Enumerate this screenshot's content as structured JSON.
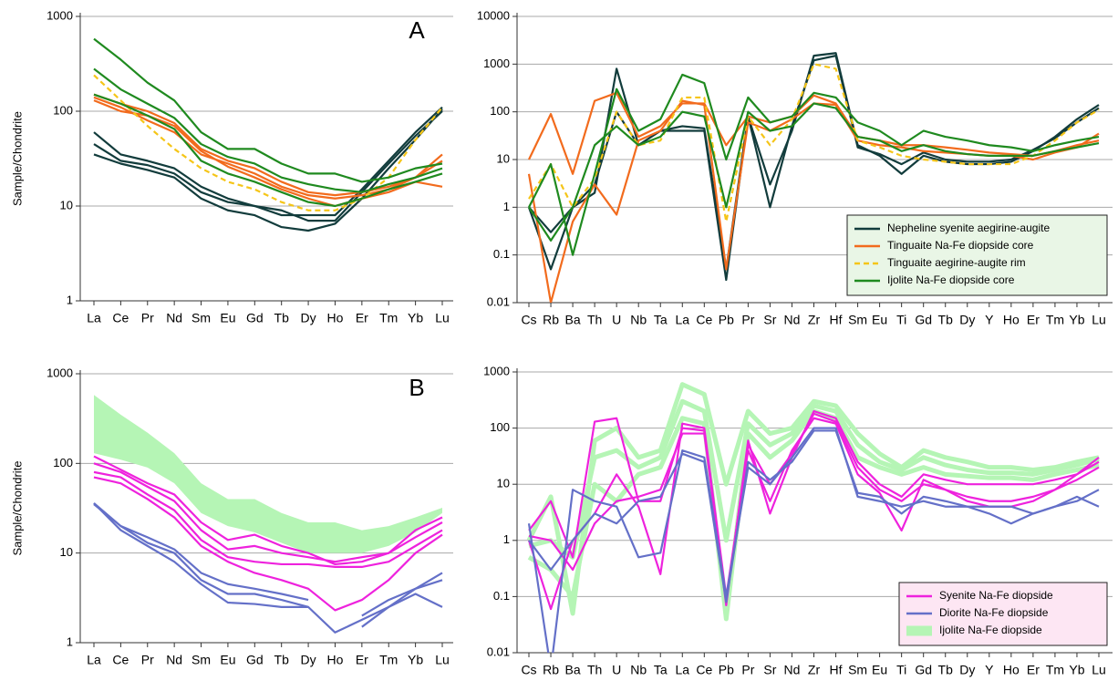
{
  "chart_data": [
    {
      "type": "line",
      "annotation": "A",
      "ylabel": "Sample/Chondrite",
      "log": true,
      "grid": true,
      "categories": [
        "La",
        "Ce",
        "Pr",
        "Nd",
        "Sm",
        "Eu",
        "Gd",
        "Tb",
        "Dy",
        "Ho",
        "Er",
        "Tm",
        "Yb",
        "Lu"
      ],
      "ylim": [
        1,
        1000
      ],
      "yticks": [
        1,
        10,
        100,
        1000
      ],
      "series": [
        {
          "color": "#123c3c",
          "lines": [
            [
              45,
              30,
              27,
              22,
              14,
              11,
              10,
              8,
              8,
              8,
              15,
              30,
              60,
              110
            ],
            [
              60,
              35,
              30,
              25,
              16,
              12,
              10,
              9,
              7,
              7,
              14,
              28,
              55,
              100
            ],
            [
              35,
              28,
              24,
              20,
              12,
              9,
              8,
              6,
              5.5,
              6.5,
              12,
              25,
              50,
              105
            ]
          ]
        },
        {
          "color": "#f26b1d",
          "lines": [
            [
              150,
              120,
              100,
              75,
              40,
              30,
              25,
              18,
              14,
              13,
              14,
              16,
              20,
              35
            ],
            [
              140,
              110,
              80,
              60,
              35,
              28,
              22,
              16,
              13,
              12,
              13,
              15,
              20,
              30
            ],
            [
              130,
              100,
              90,
              70,
              38,
              26,
              20,
              15,
              12,
              10,
              12,
              14,
              18,
              16
            ]
          ]
        },
        {
          "color": "#f5c518",
          "dash": true,
          "lines": [
            [
              240,
              130,
              70,
              40,
              25,
              18,
              15,
              11,
              9,
              9,
              12,
              20,
              50,
              110
            ]
          ]
        },
        {
          "color": "#1f8a1f",
          "lines": [
            [
              580,
              350,
              200,
              130,
              60,
              40,
              40,
              28,
              22,
              22,
              18,
              20,
              25,
              28
            ],
            [
              280,
              170,
              120,
              85,
              45,
              33,
              28,
              20,
              17,
              15,
              14,
              17,
              20,
              25
            ],
            [
              150,
              120,
              90,
              65,
              30,
              22,
              18,
              14,
              11,
              10,
              12,
              15,
              18,
              22
            ]
          ]
        }
      ]
    },
    {
      "type": "line",
      "log": true,
      "grid": true,
      "legend": "lower right",
      "legend_color": "#e9f6e6",
      "categories": [
        "Cs",
        "Rb",
        "Ba",
        "Th",
        "U",
        "Nb",
        "Ta",
        "La",
        "Ce",
        "Pb",
        "Pr",
        "Sr",
        "Nd",
        "Zr",
        "Hf",
        "Sm",
        "Eu",
        "Ti",
        "Gd",
        "Tb",
        "Dy",
        "Y",
        "Ho",
        "Er",
        "Tm",
        "Yb",
        "Lu"
      ],
      "ylim": [
        0.01,
        10000
      ],
      "yticks": [
        0.01,
        0.1,
        1,
        10,
        100,
        1000,
        10000
      ],
      "series": [
        {
          "name": "Nepheline syenite aegirine-augite",
          "color": "#123c3c",
          "lines": [
            [
              1,
              0.05,
              1,
              2,
              800,
              20,
              40,
              40,
              40,
              0.03,
              80,
              3,
              40,
              1500,
              1700,
              20,
              12,
              5,
              12,
              9,
              8,
              8,
              9,
              15,
              30,
              70,
              140
            ],
            [
              1,
              0.3,
              1,
              3,
              100,
              20,
              40,
              50,
              45,
              0.05,
              80,
              1,
              50,
              1200,
              1500,
              18,
              13,
              8,
              14,
              10,
              9,
              9,
              10,
              16,
              28,
              60,
              120
            ]
          ]
        },
        {
          "name": "Tinguaite Na-Fe diopside core",
          "color": "#f26b1d",
          "lines": [
            [
              10,
              90,
              5,
              170,
              250,
              30,
              50,
              150,
              150,
              20,
              80,
              60,
              80,
              220,
              150,
              30,
              25,
              20,
              20,
              18,
              16,
              14,
              13,
              12,
              15,
              20,
              25
            ],
            [
              5,
              0.01,
              0.5,
              3,
              0.7,
              25,
              40,
              170,
              140,
              0.05,
              60,
              40,
              70,
              150,
              140,
              25,
              20,
              18,
              15,
              14,
              13,
              12,
              12,
              10,
              14,
              18,
              35
            ]
          ]
        },
        {
          "name": "Tinguaite aegirine-augite rim",
          "color": "#f5c518",
          "dash": true,
          "lines": [
            [
              1.5,
              8,
              1,
              4,
              100,
              20,
              25,
              200,
              200,
              0.5,
              80,
              20,
              70,
              1000,
              800,
              25,
              18,
              12,
              10,
              9,
              8,
              8,
              8,
              12,
              25,
              60,
              110
            ]
          ]
        },
        {
          "name": "Ijolite Na-Fe diopside core",
          "color": "#1f8a1f",
          "lines": [
            [
              1,
              8,
              0.1,
              5,
              300,
              40,
              70,
              600,
              400,
              10,
              200,
              60,
              80,
              250,
              200,
              60,
              40,
              20,
              40,
              30,
              25,
              20,
              18,
              15,
              20,
              25,
              30
            ],
            [
              1,
              0.2,
              1,
              20,
              50,
              20,
              30,
              100,
              80,
              1,
              100,
              40,
              50,
              150,
              120,
              30,
              25,
              15,
              20,
              15,
              13,
              12,
              12,
              12,
              15,
              18,
              22
            ]
          ]
        }
      ]
    },
    {
      "type": "line",
      "annotation": "B",
      "ylabel": "Sample/Chondrite",
      "log": true,
      "grid": true,
      "categories": [
        "La",
        "Ce",
        "Pr",
        "Nd",
        "Sm",
        "Eu",
        "Gd",
        "Tb",
        "Dy",
        "Ho",
        "Er",
        "Tm",
        "Yb",
        "Lu"
      ],
      "ylim": [
        1,
        1000
      ],
      "yticks": [
        1,
        10,
        100,
        1000
      ],
      "series": [
        {
          "color": "#b5f5b5",
          "lower": [
            130,
            110,
            90,
            60,
            28,
            20,
            17,
            13,
            10,
            10,
            10,
            12,
            17,
            28
          ],
          "upper": [
            580,
            350,
            220,
            130,
            60,
            40,
            40,
            28,
            22,
            22,
            18,
            20,
            25,
            32
          ]
        },
        {
          "color": "#ee22dd",
          "lines": [
            [
              120,
              85,
              60,
              45,
              22,
              14,
              16,
              12,
              10,
              7.5,
              8,
              10,
              18,
              25
            ],
            [
              100,
              80,
              55,
              38,
              18,
              11,
              12,
              10,
              9,
              8,
              9,
              10,
              15,
              22
            ],
            [
              80,
              70,
              45,
              30,
              14,
              9,
              8,
              7.5,
              7.5,
              7,
              7,
              8,
              12,
              18
            ],
            [
              70,
              60,
              40,
              25,
              12,
              8,
              6,
              5,
              4,
              2.3,
              3,
              5,
              10,
              16
            ]
          ]
        },
        {
          "color": "#6470c8",
          "lines": [
            [
              35,
              20,
              15,
              11,
              6,
              4.5,
              4,
              3.5,
              3,
              null,
              2,
              3,
              4,
              6
            ],
            [
              36,
              20,
              13,
              10,
              5,
              3.5,
              3.5,
              3,
              2.5,
              null,
              1.5,
              2.5,
              4,
              5
            ],
            [
              36,
              18,
              12,
              8,
              4.5,
              2.8,
              2.7,
              2.5,
              2.5,
              1.3,
              1.8,
              2.5,
              3.5,
              2.5
            ]
          ]
        }
      ]
    },
    {
      "type": "line",
      "log": true,
      "grid": true,
      "legend": "lower right",
      "legend_color": "#fde6f3",
      "categories": [
        "Cs",
        "Rb",
        "Ba",
        "Th",
        "U",
        "Nb",
        "Ta",
        "La",
        "Ce",
        "Pb",
        "Pr",
        "Sr",
        "Nd",
        "Zr",
        "Hf",
        "Sm",
        "Eu",
        "Ti",
        "Gd",
        "Tb",
        "Dy",
        "Y",
        "Ho",
        "Er",
        "Tm",
        "Yb",
        "Lu"
      ],
      "ylim": [
        0.01,
        1000
      ],
      "yticks": [
        0.01,
        0.1,
        1,
        10,
        100,
        1000
      ],
      "series": [
        {
          "name": "Ijolite Na-Fe diopside",
          "color": "#b5f5b5",
          "width": 5,
          "lines": [
            [
              1,
              6,
              0.05,
              60,
              100,
              30,
              40,
              600,
              400,
              10,
              200,
              80,
              100,
              300,
              250,
              80,
              35,
              20,
              40,
              30,
              25,
              20,
              20,
              18,
              20,
              25,
              30
            ],
            [
              0.5,
              0.3,
              0.1,
              10,
              5,
              15,
              20,
              150,
              120,
              0.04,
              80,
              30,
              60,
              200,
              150,
              30,
              20,
              15,
              20,
              15,
              14,
              13,
              13,
              12,
              15,
              18,
              22
            ],
            [
              0.8,
              1,
              0.5,
              30,
              40,
              20,
              30,
              300,
              200,
              1,
              120,
              50,
              80,
              250,
              200,
              50,
              25,
              18,
              30,
              22,
              18,
              16,
              16,
              15,
              18,
              22,
              28
            ]
          ]
        },
        {
          "name": "Syenite Na-Fe diopside",
          "color": "#ee22dd",
          "lines": [
            [
              1.5,
              5,
              0.5,
              130,
              150,
              5,
              5,
              100,
              90,
              0.07,
              60,
              3,
              30,
              200,
              150,
              25,
              10,
              6,
              15,
              12,
              10,
              10,
              10,
              10,
              12,
              15,
              25
            ],
            [
              1,
              0.06,
              1,
              3,
              15,
              4,
              0.25,
              120,
              100,
              0.1,
              40,
              5,
              40,
              150,
              120,
              15,
              7,
              1.5,
              12,
              8,
              5,
              4,
              4,
              5,
              8,
              15,
              30
            ],
            [
              1.2,
              1,
              0.3,
              2,
              5,
              6,
              8,
              80,
              80,
              0.08,
              50,
              10,
              35,
              180,
              130,
              20,
              8,
              5,
              10,
              8,
              6,
              5,
              5,
              6,
              8,
              12,
              20
            ]
          ]
        },
        {
          "name": "Diorite Na-Fe diopside",
          "color": "#6470c8",
          "lines": [
            [
              2,
              0.005,
              8,
              5,
              4,
              0.5,
              0.6,
              40,
              30,
              0.1,
              20,
              10,
              30,
              100,
              100,
              6,
              5,
              4,
              5,
              4,
              4,
              3,
              2,
              3,
              4,
              5,
              8
            ],
            [
              1,
              0.3,
              1,
              3,
              2,
              5,
              6,
              35,
              25,
              0.08,
              25,
              12,
              25,
              90,
              90,
              7,
              6,
              3,
              6,
              5,
              4,
              4,
              4,
              3,
              4,
              6,
              4
            ]
          ]
        }
      ]
    }
  ]
}
